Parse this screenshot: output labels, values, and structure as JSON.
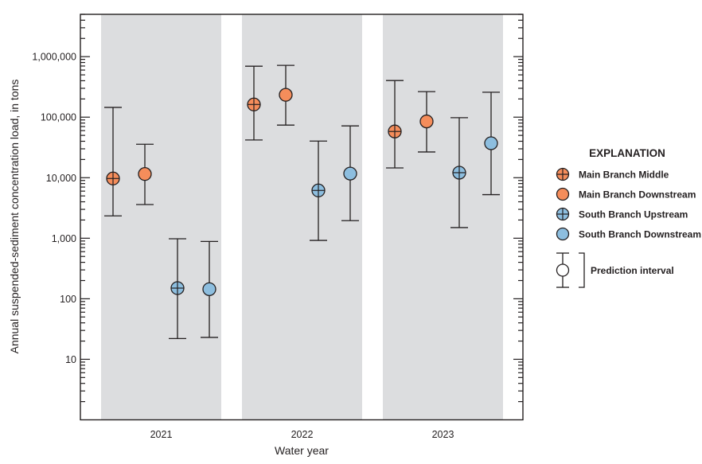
{
  "chart_data": {
    "type": "scatter",
    "subtype": "points-with-error-bars",
    "xlabel": "Water year",
    "ylabel": "Annual suspended-sediment concentration load, in tons",
    "yscale": "log",
    "ylim": [
      1,
      5000000
    ],
    "yticks": [
      {
        "value": 1000000,
        "label": "1,000,000"
      },
      {
        "value": 100000,
        "label": "100,000"
      },
      {
        "value": 10000,
        "label": "10,000"
      },
      {
        "value": 1000,
        "label": "1,000"
      },
      {
        "value": 100,
        "label": "100"
      },
      {
        "value": 10,
        "label": "10"
      }
    ],
    "categories": [
      "2021",
      "2022",
      "2023"
    ],
    "grid": false,
    "series": [
      {
        "name": "Main Branch Middle",
        "color": "#f58d5b",
        "marker": "circle-cross",
        "values": [
          9700,
          162000,
          58000
        ],
        "lower": [
          2340,
          42000,
          14500
        ],
        "upper": [
          145000,
          695000,
          403000
        ]
      },
      {
        "name": "Main Branch Downstream",
        "color": "#f58d5b",
        "marker": "circle",
        "values": [
          11500,
          234000,
          85000
        ],
        "lower": [
          3600,
          74000,
          26600
        ],
        "upper": [
          35700,
          717000,
          264000
        ]
      },
      {
        "name": "South Branch Upstream",
        "color": "#8dbedf",
        "marker": "circle-cross",
        "values": [
          150,
          6160,
          12100
        ],
        "lower": [
          22,
          920,
          1500
        ],
        "upper": [
          980,
          40300,
          98000
        ]
      },
      {
        "name": "South Branch Downstream",
        "color": "#8dbedf",
        "marker": "circle",
        "values": [
          144,
          11700,
          37100
        ],
        "lower": [
          23,
          1950,
          5250
        ],
        "upper": [
          885,
          71700,
          258000
        ]
      }
    ],
    "legend": {
      "title": "EXPLANATION",
      "position": "right",
      "interval_label": "Prediction interval"
    },
    "band_color": "#dcdddf"
  }
}
